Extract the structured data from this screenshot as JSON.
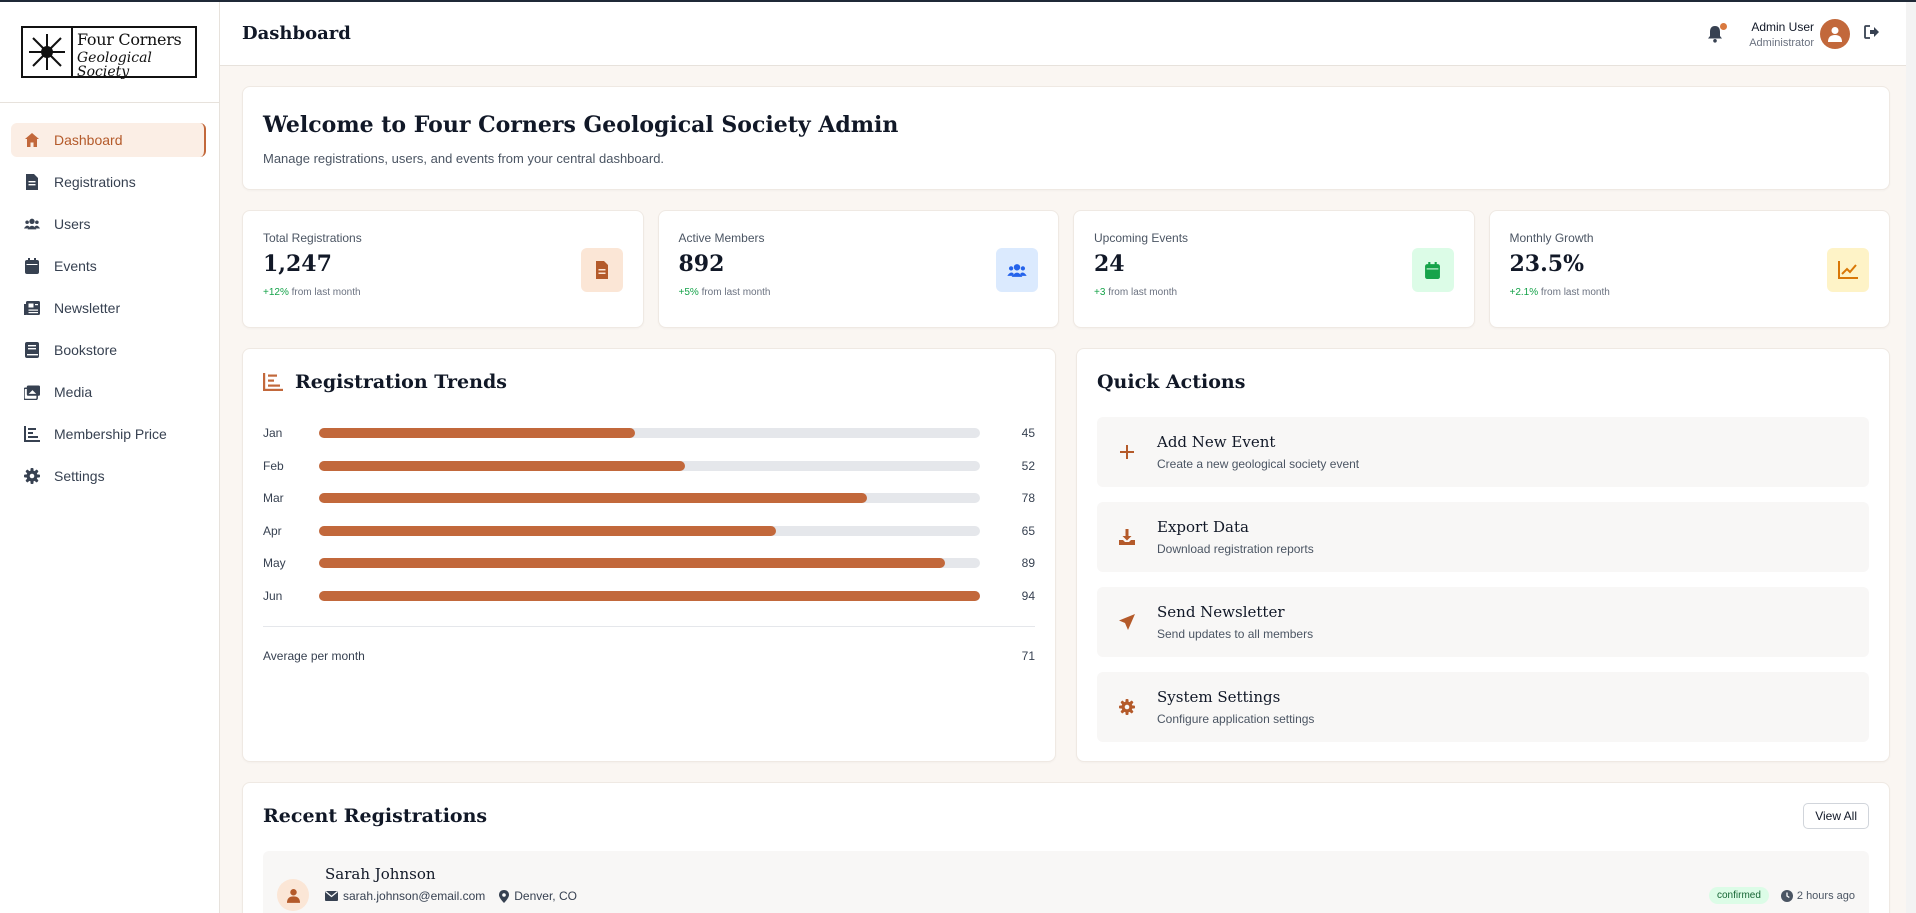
{
  "logo": {
    "line1": "Four Corners",
    "line2": "Geological Society"
  },
  "sidebar": {
    "items": [
      {
        "label": "Dashboard",
        "icon": "home-icon"
      },
      {
        "label": "Registrations",
        "icon": "document-icon"
      },
      {
        "label": "Users",
        "icon": "users-icon"
      },
      {
        "label": "Events",
        "icon": "calendar-icon"
      },
      {
        "label": "Newsletter",
        "icon": "newspaper-icon"
      },
      {
        "label": "Bookstore",
        "icon": "book-icon"
      },
      {
        "label": "Media",
        "icon": "images-icon"
      },
      {
        "label": "Membership Price",
        "icon": "chart-icon"
      },
      {
        "label": "Settings",
        "icon": "gear-icon"
      }
    ]
  },
  "header": {
    "title": "Dashboard",
    "user_name": "Admin User",
    "user_role": "Administrator"
  },
  "welcome": {
    "title": "Welcome to Four Corners Geological Society Admin",
    "subtitle": "Manage registrations, users, and events from your central dashboard."
  },
  "stats": [
    {
      "label": "Total Registrations",
      "value": "1,247",
      "change": "+12%",
      "suffix": "from last month",
      "icon": "document-icon",
      "color": "#c2683b",
      "bg": "#fbe6d6"
    },
    {
      "label": "Active Members",
      "value": "892",
      "change": "+5%",
      "suffix": "from last month",
      "icon": "users-icon",
      "color": "#2563eb",
      "bg": "#dbeafe"
    },
    {
      "label": "Upcoming Events",
      "value": "24",
      "change": "+3",
      "suffix": "from last month",
      "icon": "calendar-icon",
      "color": "#16a34a",
      "bg": "#dcfce7"
    },
    {
      "label": "Monthly Growth",
      "value": "23.5%",
      "change": "+2.1%",
      "suffix": "from last month",
      "icon": "trend-icon",
      "color": "#d97706",
      "bg": "#fef3c7"
    }
  ],
  "trends": {
    "title": "Registration Trends",
    "avg_label": "Average per month",
    "avg_value": "71"
  },
  "chart_data": {
    "type": "bar",
    "categories": [
      "Jan",
      "Feb",
      "Mar",
      "Apr",
      "May",
      "Jun"
    ],
    "values": [
      45,
      52,
      78,
      65,
      89,
      94
    ],
    "ylim": [
      0,
      94
    ]
  },
  "quick_actions": {
    "title": "Quick Actions",
    "items": [
      {
        "title": "Add New Event",
        "desc": "Create a new geological society event",
        "icon": "plus-icon"
      },
      {
        "title": "Export Data",
        "desc": "Download registration reports",
        "icon": "download-icon"
      },
      {
        "title": "Send Newsletter",
        "desc": "Send updates to all members",
        "icon": "send-icon"
      },
      {
        "title": "System Settings",
        "desc": "Configure application settings",
        "icon": "gear-icon"
      }
    ]
  },
  "recent": {
    "title": "Recent Registrations",
    "view_all": "View All",
    "items": [
      {
        "name": "Sarah Johnson",
        "email": "sarah.johnson@email.com",
        "location": "Denver, CO",
        "status": "confirmed",
        "time": "2 hours ago"
      }
    ]
  },
  "colors": {
    "accent": "#c2683b"
  }
}
